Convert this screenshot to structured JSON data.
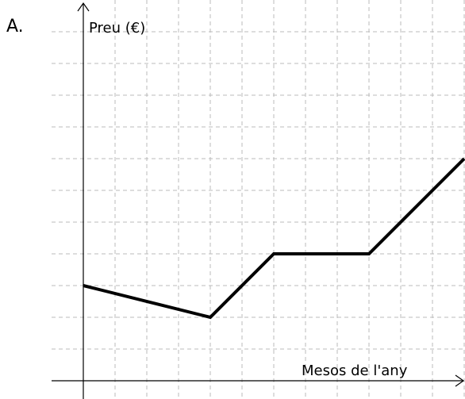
{
  "chart_data": {
    "type": "line",
    "panel_label": "A.",
    "ylabel": "Preu (€)",
    "xlabel": "Mesos de l'any",
    "x": [
      0,
      4,
      6,
      9,
      12
    ],
    "series": [
      {
        "color": "#000000",
        "values": [
          3,
          2,
          4,
          4,
          7
        ]
      }
    ],
    "xlim": [
      -1,
      12
    ],
    "ylim": [
      -0.5,
      11.5
    ],
    "xticks": [
      1,
      2,
      3,
      4,
      5,
      6,
      7,
      8,
      9,
      10,
      11,
      12
    ],
    "yticks": [
      1,
      2,
      3,
      4,
      5,
      6,
      7,
      8,
      9,
      10,
      11
    ],
    "grid": true
  }
}
